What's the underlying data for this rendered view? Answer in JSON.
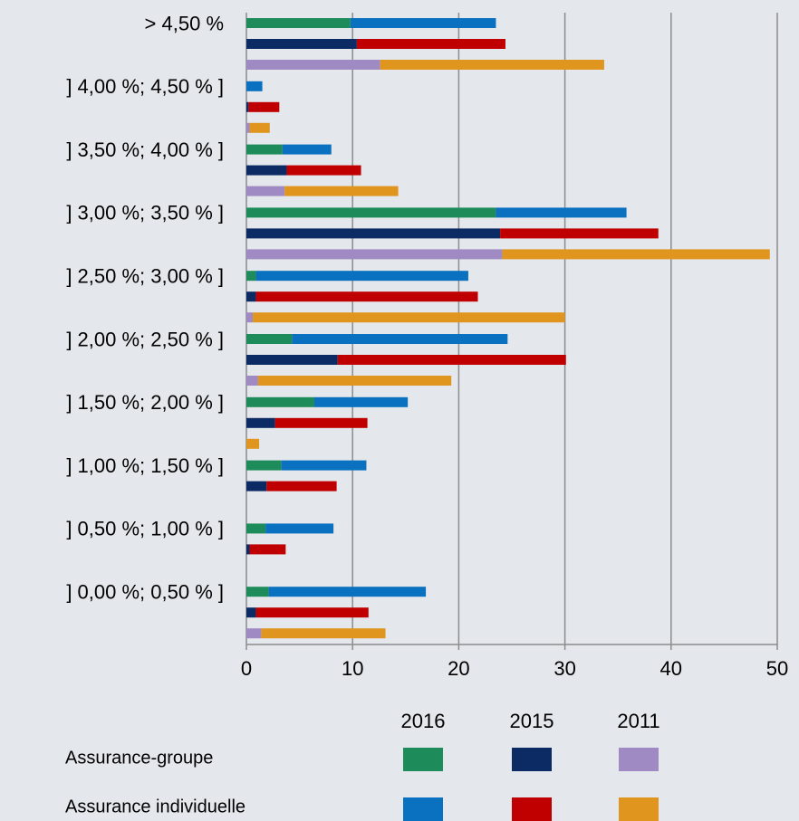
{
  "chart_data": {
    "type": "grouped-stacked-barh",
    "categories": [
      "> 4,50 %",
      "] 4,00 %; 4,50 % ]",
      "] 3,50 %; 4,00 % ]",
      "] 3,00 %; 3,50 % ]",
      "] 2,50 %; 3,00 % ]",
      "] 2,00 %; 2,50 % ]",
      "] 1,50 %; 2,00 % ]",
      "] 1,00 %; 1,50 % ]",
      "] 0,50 %; 1,00 % ]",
      "] 0,00 %; 0,50 % ]"
    ],
    "stack_names": [
      "Assurance-groupe",
      "Assurance individuelle"
    ],
    "groups": [
      {
        "name": "2016",
        "segments": [
          {
            "color": "#1e8c5a",
            "values": [
              9.8,
              0,
              3.4,
              23.5,
              0.9,
              4.3,
              6.4,
              3.3,
              1.8,
              2.1
            ]
          },
          {
            "color": "#0a70c0",
            "values": [
              13.7,
              1.5,
              4.6,
              12.3,
              20.0,
              20.3,
              8.8,
              8.0,
              6.4,
              14.8
            ]
          }
        ]
      },
      {
        "name": "2015",
        "segments": [
          {
            "color": "#0c2a64",
            "values": [
              10.4,
              0.2,
              3.8,
              23.9,
              0.9,
              8.6,
              2.7,
              1.9,
              0.3,
              0.9
            ]
          },
          {
            "color": "#c00000",
            "values": [
              14.0,
              2.9,
              7.0,
              14.9,
              20.9,
              21.5,
              8.7,
              6.6,
              3.4,
              10.6
            ]
          }
        ]
      },
      {
        "name": "2011",
        "segments": [
          {
            "color": "#a08ac4",
            "values": [
              12.6,
              0.3,
              3.6,
              24.1,
              0.6,
              1.1,
              0,
              0,
              0,
              1.4
            ]
          },
          {
            "color": "#e0961e",
            "values": [
              21.1,
              1.9,
              10.7,
              25.2,
              29.4,
              18.2,
              1.2,
              0,
              0,
              11.7
            ]
          }
        ]
      }
    ],
    "xlim": [
      0,
      50
    ],
    "xticks": [
      0,
      10,
      20,
      30,
      40,
      50
    ],
    "grid": true
  }
}
